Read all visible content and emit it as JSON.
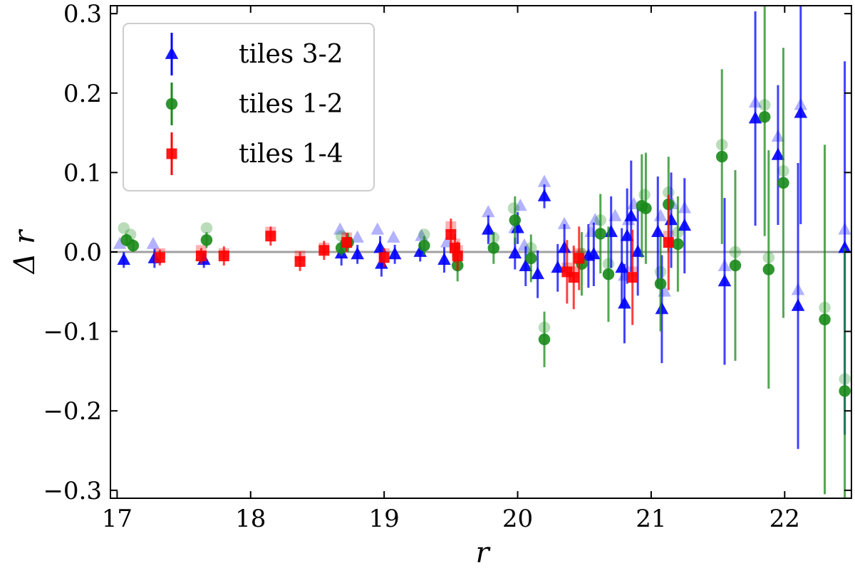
{
  "chart_data": {
    "type": "scatter",
    "xlabel": "r",
    "ylabel": "Δ r",
    "xlim": [
      16.95,
      22.5
    ],
    "ylim": [
      -0.31,
      0.31
    ],
    "x_ticks": [
      17,
      18,
      19,
      20,
      21,
      22
    ],
    "y_ticks": [
      -0.3,
      -0.2,
      -0.1,
      0.0,
      0.1,
      0.2,
      0.3
    ],
    "y_tick_labels": [
      "−0.3",
      "−0.2",
      "−0.1",
      "0.0",
      "0.1",
      "0.2",
      "0.3"
    ],
    "reference_line_y": 0.0,
    "legend_position": "top-left",
    "series": [
      {
        "name": "tiles 3-2",
        "marker": "triangle",
        "color": "#0000ff",
        "points": [
          [
            17.05,
            -0.01,
            0.01,
            0.01
          ],
          [
            17.28,
            -0.008,
            0.012,
            0.012
          ],
          [
            17.65,
            -0.01,
            0.01,
            0.01
          ],
          [
            18.68,
            -0.002,
            0.015,
            0.015
          ],
          [
            18.8,
            -0.003,
            0.012,
            0.012
          ],
          [
            18.97,
            0.005,
            0.015,
            0.015
          ],
          [
            18.98,
            -0.015,
            0.016,
            0.016
          ],
          [
            19.08,
            -0.003,
            0.012,
            0.012
          ],
          [
            19.27,
            0.0,
            0.012,
            0.012
          ],
          [
            19.45,
            -0.01,
            0.016,
            0.016
          ],
          [
            19.78,
            0.028,
            0.018,
            0.018
          ],
          [
            19.98,
            -0.002,
            0.02,
            0.02
          ],
          [
            20.0,
            0.03,
            0.02,
            0.02
          ],
          [
            20.06,
            -0.018,
            0.025,
            0.025
          ],
          [
            20.15,
            -0.028,
            0.03,
            0.03
          ],
          [
            20.2,
            0.07,
            0.015,
            0.015
          ],
          [
            20.3,
            -0.02,
            0.03,
            0.03
          ],
          [
            20.35,
            0.005,
            0.03,
            0.03
          ],
          [
            20.53,
            -0.005,
            0.04,
            0.04
          ],
          [
            20.57,
            -0.003,
            0.04,
            0.04
          ],
          [
            20.7,
            0.025,
            0.045,
            0.045
          ],
          [
            20.78,
            -0.02,
            0.05,
            0.05
          ],
          [
            20.8,
            -0.065,
            0.05,
            0.05
          ],
          [
            20.82,
            0.02,
            0.06,
            0.06
          ],
          [
            20.85,
            0.045,
            0.07,
            0.07
          ],
          [
            20.9,
            0.0,
            0.055,
            0.055
          ],
          [
            21.05,
            0.025,
            0.07,
            0.07
          ],
          [
            21.08,
            -0.072,
            0.068,
            0.068
          ],
          [
            21.15,
            0.04,
            0.06,
            0.06
          ],
          [
            21.25,
            0.033,
            0.06,
            0.06
          ],
          [
            21.55,
            -0.037,
            0.105,
            0.105
          ],
          [
            21.78,
            0.168,
            0.135,
            0.135
          ],
          [
            21.95,
            0.122,
            0.088,
            0.088
          ],
          [
            22.1,
            -0.068,
            0.18,
            0.18
          ],
          [
            22.12,
            0.175,
            0.14,
            0.14
          ],
          [
            22.45,
            0.005,
            0.235,
            0.235
          ]
        ],
        "faint_points": [
          [
            17.02,
            0.01
          ],
          [
            17.27,
            0.01
          ],
          [
            17.63,
            -0.005
          ],
          [
            18.67,
            0.028
          ],
          [
            18.8,
            0.018
          ],
          [
            18.95,
            0.028
          ],
          [
            19.07,
            0.018
          ],
          [
            19.28,
            0.02
          ],
          [
            19.47,
            0.012
          ],
          [
            19.78,
            0.05
          ],
          [
            19.98,
            0.03
          ],
          [
            20.02,
            0.058
          ],
          [
            20.05,
            0.008
          ],
          [
            20.2,
            0.088
          ],
          [
            20.35,
            0.035
          ],
          [
            20.55,
            0.025
          ],
          [
            20.58,
            0.04
          ],
          [
            20.73,
            0.045
          ],
          [
            20.8,
            -0.03
          ],
          [
            20.83,
            0.04
          ],
          [
            20.87,
            0.06
          ],
          [
            21.07,
            0.045
          ],
          [
            21.1,
            -0.05
          ],
          [
            21.16,
            0.06
          ],
          [
            21.25,
            0.055
          ],
          [
            21.55,
            -0.018
          ],
          [
            21.78,
            0.188
          ],
          [
            21.95,
            0.145
          ],
          [
            22.1,
            -0.048
          ],
          [
            22.12,
            0.185
          ],
          [
            22.45,
            0.028
          ]
        ]
      },
      {
        "name": "tiles 1-2",
        "marker": "circle",
        "color": "#1a8a1a",
        "points": [
          [
            17.07,
            0.015,
            0.008,
            0.008
          ],
          [
            17.12,
            0.008,
            0.008,
            0.008
          ],
          [
            17.67,
            0.015,
            0.01,
            0.01
          ],
          [
            18.68,
            0.005,
            0.01,
            0.01
          ],
          [
            18.73,
            0.012,
            0.012,
            0.012
          ],
          [
            19.3,
            0.008,
            0.012,
            0.012
          ],
          [
            19.55,
            -0.017,
            0.02,
            0.02
          ],
          [
            19.82,
            0.005,
            0.02,
            0.02
          ],
          [
            19.98,
            0.04,
            0.03,
            0.03
          ],
          [
            20.1,
            -0.008,
            0.03,
            0.03
          ],
          [
            20.2,
            -0.11,
            0.035,
            0.035
          ],
          [
            20.48,
            -0.015,
            0.04,
            0.04
          ],
          [
            20.62,
            0.023,
            0.05,
            0.05
          ],
          [
            20.68,
            -0.028,
            0.06,
            0.06
          ],
          [
            20.93,
            0.058,
            0.065,
            0.065
          ],
          [
            20.96,
            0.055,
            0.07,
            0.07
          ],
          [
            21.07,
            -0.04,
            0.06,
            0.06
          ],
          [
            21.13,
            0.06,
            0.06,
            0.06
          ],
          [
            21.2,
            0.01,
            0.06,
            0.06
          ],
          [
            21.53,
            0.12,
            0.11,
            0.11
          ],
          [
            21.63,
            -0.017,
            0.12,
            0.12
          ],
          [
            21.85,
            0.17,
            0.15,
            0.15
          ],
          [
            21.88,
            -0.022,
            0.15,
            0.15
          ],
          [
            21.99,
            0.087,
            0.17,
            0.17
          ],
          [
            22.3,
            -0.085,
            0.22,
            0.22
          ],
          [
            22.45,
            -0.175,
            0.18,
            0.18
          ]
        ],
        "faint_points": [
          [
            17.05,
            0.03
          ],
          [
            17.1,
            0.022
          ],
          [
            17.67,
            0.03
          ],
          [
            18.68,
            0.02
          ],
          [
            19.3,
            0.022
          ],
          [
            19.55,
            -0.005
          ],
          [
            19.82,
            0.018
          ],
          [
            19.97,
            0.055
          ],
          [
            20.1,
            0.005
          ],
          [
            20.2,
            -0.095
          ],
          [
            20.48,
            -0.002
          ],
          [
            20.62,
            0.04
          ],
          [
            20.68,
            -0.015
          ],
          [
            20.95,
            0.072
          ],
          [
            21.07,
            -0.025
          ],
          [
            21.13,
            0.075
          ],
          [
            21.2,
            0.025
          ],
          [
            21.53,
            0.135
          ],
          [
            21.63,
            0.0
          ],
          [
            21.85,
            0.185
          ],
          [
            21.88,
            -0.007
          ],
          [
            21.99,
            0.102
          ],
          [
            22.3,
            -0.07
          ],
          [
            22.45,
            -0.16
          ]
        ]
      },
      {
        "name": "tiles 1-4",
        "marker": "square",
        "color": "#ff0000",
        "points": [
          [
            17.32,
            -0.007,
            0.01,
            0.01
          ],
          [
            17.63,
            -0.005,
            0.01,
            0.01
          ],
          [
            17.8,
            -0.005,
            0.012,
            0.012
          ],
          [
            18.15,
            0.02,
            0.012,
            0.012
          ],
          [
            18.37,
            -0.012,
            0.012,
            0.012
          ],
          [
            18.55,
            0.002,
            0.012,
            0.012
          ],
          [
            18.72,
            0.012,
            0.012,
            0.012
          ],
          [
            19.0,
            -0.007,
            0.012,
            0.012
          ],
          [
            19.5,
            0.022,
            0.02,
            0.02
          ],
          [
            19.53,
            0.005,
            0.018,
            0.018
          ],
          [
            19.55,
            -0.005,
            0.018,
            0.018
          ],
          [
            20.37,
            -0.025,
            0.04,
            0.04
          ],
          [
            20.42,
            -0.032,
            0.04,
            0.04
          ],
          [
            20.46,
            -0.008,
            0.04,
            0.04
          ],
          [
            20.86,
            -0.032,
            0.06,
            0.06
          ],
          [
            21.13,
            0.012,
            0.06,
            0.06
          ]
        ],
        "faint_points": [
          [
            17.32,
            -0.002
          ],
          [
            17.63,
            0.002
          ],
          [
            17.8,
            -0.002
          ],
          [
            18.15,
            0.025
          ],
          [
            18.37,
            -0.005
          ],
          [
            18.55,
            0.005
          ],
          [
            18.72,
            0.018
          ],
          [
            19.0,
            -0.002
          ],
          [
            19.5,
            0.032
          ],
          [
            19.53,
            0.01
          ],
          [
            19.55,
            0.002
          ],
          [
            20.37,
            -0.02
          ],
          [
            20.42,
            -0.025
          ],
          [
            20.46,
            -0.002
          ],
          [
            20.86,
            -0.025
          ],
          [
            21.13,
            0.02
          ]
        ]
      }
    ]
  }
}
